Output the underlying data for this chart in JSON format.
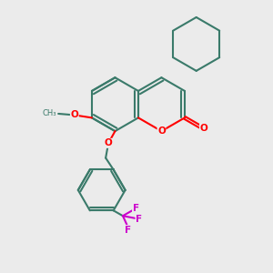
{
  "background_color": "#ebebeb",
  "bond_color": "#3a7a6a",
  "oxygen_color": "#ff0000",
  "fluorine_color": "#cc00cc",
  "line_width": 1.5,
  "figsize": [
    3.0,
    3.0
  ],
  "dpi": 100,
  "xlim": [
    0,
    10
  ],
  "ylim": [
    0,
    10
  ]
}
